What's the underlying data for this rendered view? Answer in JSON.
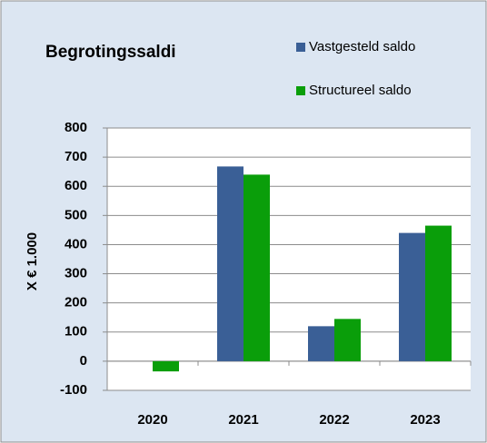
{
  "chart_data": {
    "type": "bar",
    "title": "Begrotingssaldi",
    "y_label": "X € 1.000",
    "categories": [
      "2020",
      "2021",
      "2022",
      "2023"
    ],
    "series": [
      {
        "name": "Vastgesteld saldo",
        "color": "#3a5f96",
        "values": [
          0,
          668,
          120,
          440
        ]
      },
      {
        "name": "Structureel saldo",
        "color": "#0a9e0a",
        "values": [
          -35,
          640,
          145,
          465
        ]
      }
    ],
    "ylim": [
      -100,
      800
    ],
    "yticks": [
      -100,
      0,
      100,
      200,
      300,
      400,
      500,
      600,
      700,
      800
    ],
    "grid": true
  }
}
